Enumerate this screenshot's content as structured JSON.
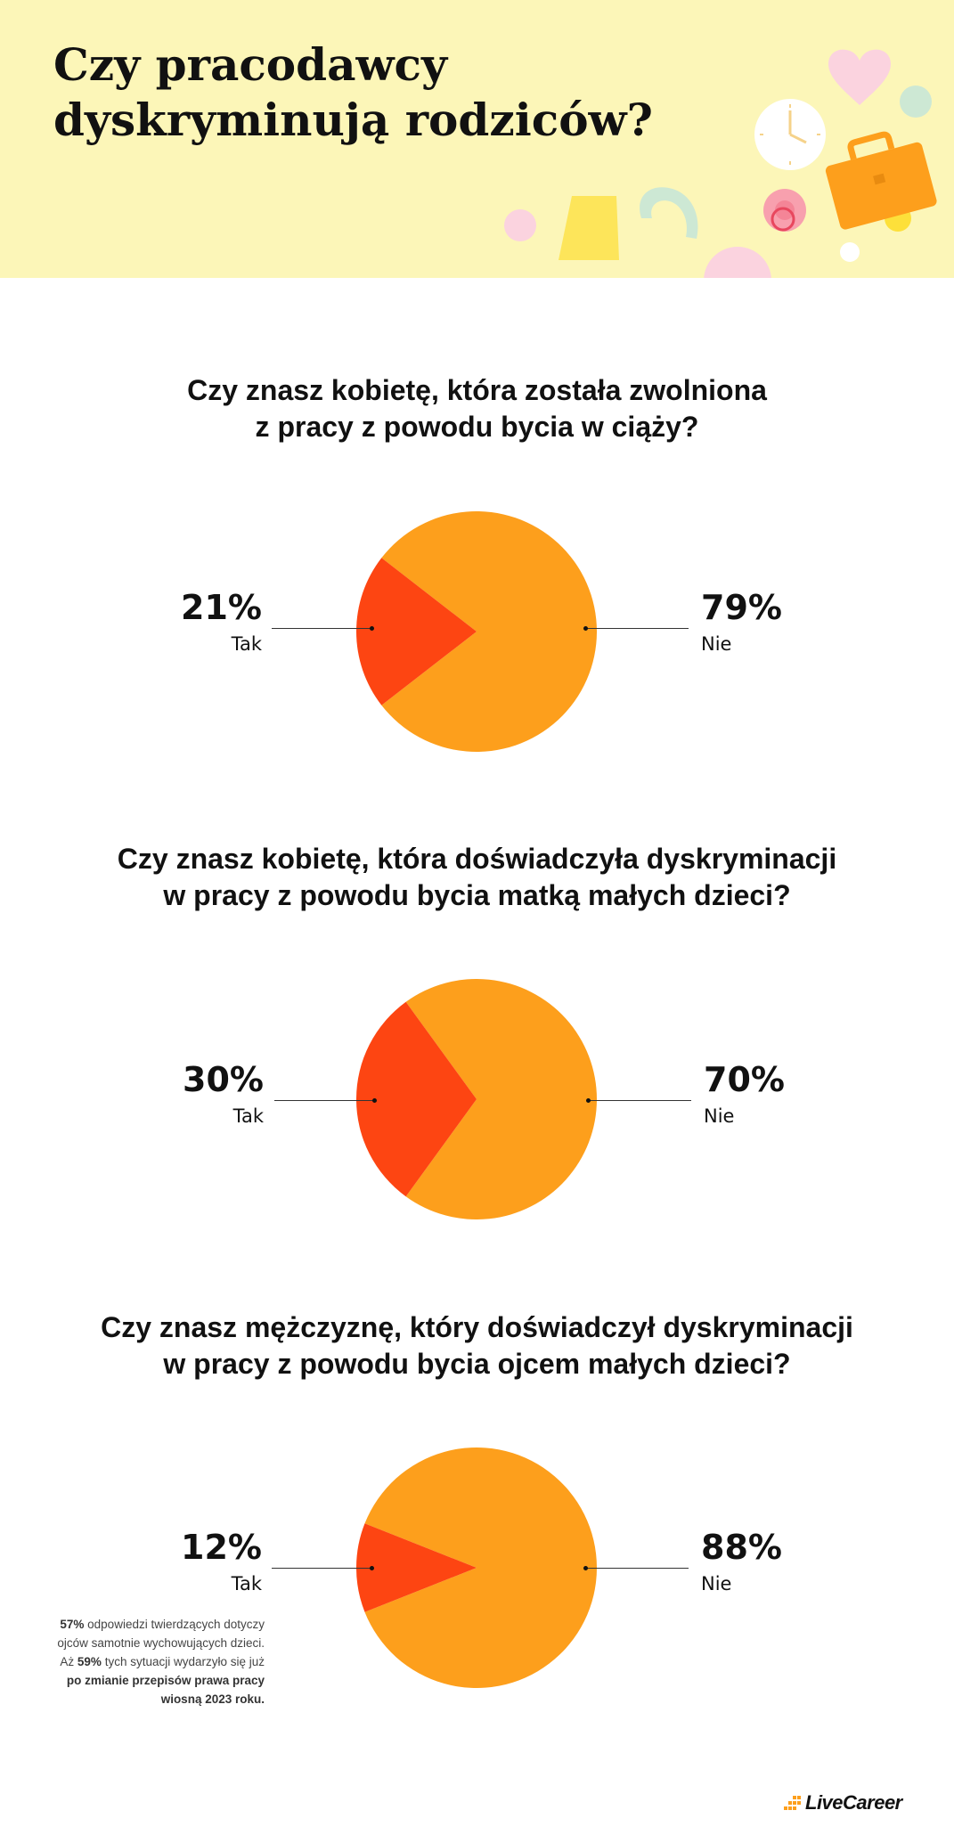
{
  "header": {
    "title": "Czy pracodawcy dyskryminują rodziców?"
  },
  "colors": {
    "header_bg": "#fcf6b8",
    "tak": "#fd4512",
    "nie": "#fd9f1c",
    "text": "#111111"
  },
  "chart_data": [
    {
      "type": "pie",
      "title_line1": "Czy znasz kobietę, która została zwolniona",
      "title_line2": "z pracy z powodu bycia w ciąży?",
      "labels": [
        "Tak",
        "Nie"
      ],
      "values": [
        21,
        79
      ],
      "value_labels": [
        "21%",
        "79%"
      ]
    },
    {
      "type": "pie",
      "title_line1": "Czy znasz kobietę, która doświadczyła dyskryminacji",
      "title_line2": "w pracy z powodu bycia matką małych dzieci?",
      "labels": [
        "Tak",
        "Nie"
      ],
      "values": [
        30,
        70
      ],
      "value_labels": [
        "30%",
        "70%"
      ]
    },
    {
      "type": "pie",
      "title_line1": "Czy znasz mężczyznę, który doświadczył dyskryminacji",
      "title_line2": "w pracy z powodu bycia ojcem małych dzieci?",
      "labels": [
        "Tak",
        "Nie"
      ],
      "values": [
        12,
        88
      ],
      "value_labels": [
        "12%",
        "88%"
      ]
    }
  ],
  "note": {
    "bold1": "57%",
    "text1": " odpowiedzi twierdzących dotyczy",
    "line2": "ojców samotnie wychowujących dzieci.",
    "text3a": "Aż ",
    "bold3": "59%",
    "text3b": " tych sytuacji wydarzyło się już",
    "bold4": "po zmianie przepisów prawa pracy",
    "bold5": "wiosną 2023 roku."
  },
  "logo": {
    "text": "LiveCareer",
    "icon": "livecareer-logo-icon"
  },
  "decorations": [
    "heart-icon",
    "clock-icon",
    "briefcase-icon",
    "pacifier-icon",
    "magnet-icon",
    "shape-icon"
  ]
}
